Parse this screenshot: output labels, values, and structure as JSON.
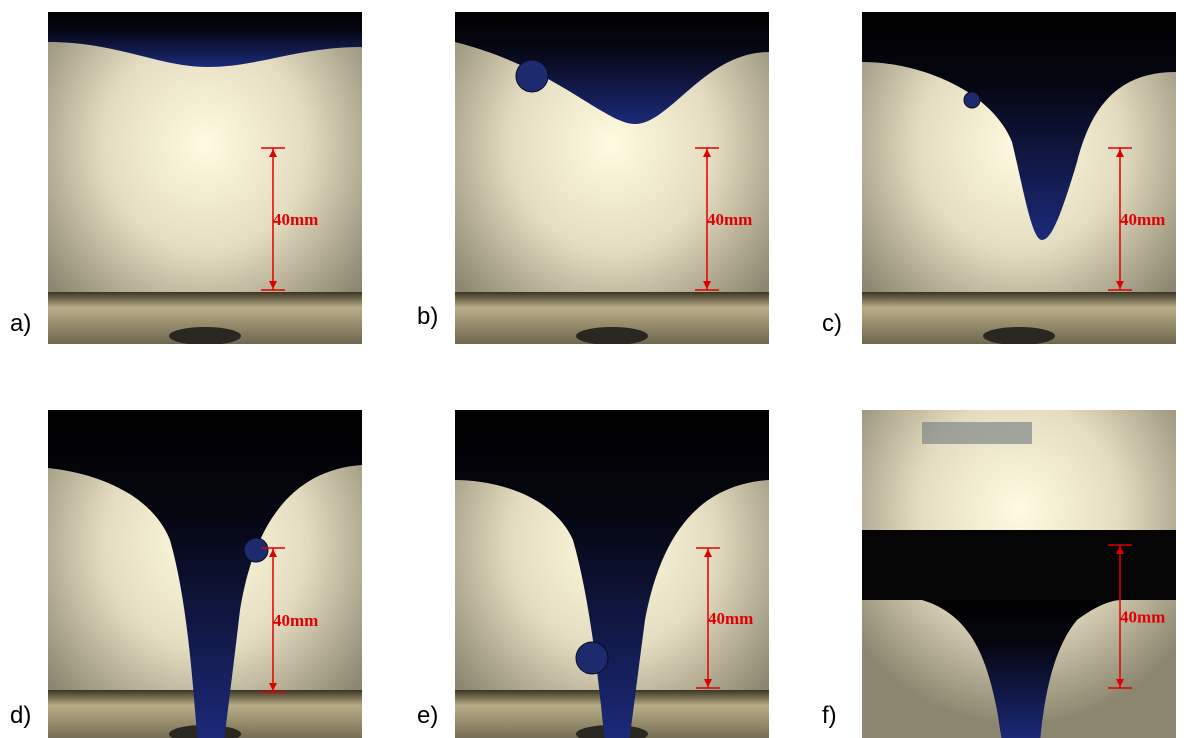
{
  "panels": [
    {
      "label": "a)",
      "annotation": "40mm"
    },
    {
      "label": "b)",
      "annotation": "40mm"
    },
    {
      "label": "c)",
      "annotation": "40mm"
    },
    {
      "label": "d)",
      "annotation": "40mm"
    },
    {
      "label": "e)",
      "annotation": "40mm"
    },
    {
      "label": "f)",
      "annotation": "40mm"
    }
  ]
}
